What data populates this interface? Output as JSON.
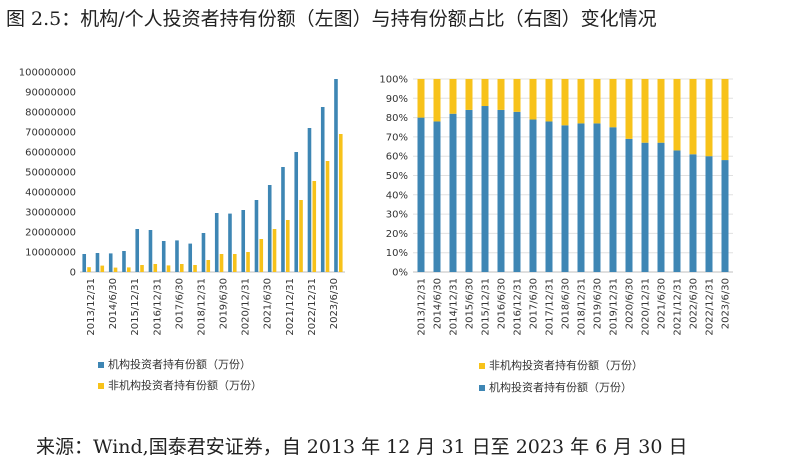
{
  "figure": {
    "title": "图 2.5：机构/个人投资者持有份额（左图）与持有份额占比（右图）变化情况",
    "source": "来源：Wind,国泰君安证券，自 2013 年 12 月 31 日至 2023 年 6 月 30 日"
  },
  "colors": {
    "institutional": "#3E86B4",
    "non_institutional": "#F7C21A"
  },
  "chart_data": [
    {
      "type": "bar",
      "categories": [
        "2013/12/31",
        "2014/6/30",
        "2014/12/31",
        "2015/6/30",
        "2015/12/31",
        "2016/6/30",
        "2016/12/31",
        "2017/6/30",
        "2017/12/31",
        "2018/6/30",
        "2018/12/31",
        "2019/6/30",
        "2019/12/31",
        "2020/6/30",
        "2020/12/31",
        "2021/6/30",
        "2021/12/31",
        "2022/6/30",
        "2022/12/31",
        "2023/6/30"
      ],
      "x_tick_labels": [
        "2013/12/31",
        "2014/6/30",
        "2015/12/31",
        "2016/12/31",
        "2017/6/30",
        "2018/12/31",
        "2019/6/30",
        "2020/12/31",
        "2021/6/30",
        "2021/12/31",
        "2022/12/31",
        "2023/6/30"
      ],
      "series": [
        {
          "name": "机构投资者持有份额（万份）",
          "values": [
            9000000,
            9500000,
            9300000,
            10500000,
            21500000,
            21000000,
            15500000,
            15800000,
            14200000,
            19500000,
            29500000,
            29200000,
            31000000,
            36000000,
            43500000,
            52500000,
            60000000,
            72000000,
            82500000,
            96500000
          ]
        },
        {
          "name": "非机构投资者持有份额（万份）",
          "values": [
            2400000,
            3200000,
            2200000,
            2300000,
            3500000,
            4000000,
            3300000,
            4000000,
            3500000,
            6000000,
            9000000,
            9000000,
            10000000,
            16500000,
            21500000,
            26000000,
            36000000,
            45500000,
            55500000,
            69000000
          ]
        }
      ],
      "y_ticks": [
        "0",
        "10000000",
        "20000000",
        "30000000",
        "40000000",
        "50000000",
        "60000000",
        "70000000",
        "80000000",
        "90000000",
        "100000000"
      ],
      "ylim": [
        0,
        100000000
      ]
    },
    {
      "type": "bar",
      "stacked": true,
      "categories": [
        "2013/12/31",
        "2014/6/30",
        "2014/12/31",
        "2015/6/30",
        "2015/12/31",
        "2016/6/30",
        "2016/12/31",
        "2017/6/30",
        "2017/12/31",
        "2018/6/30",
        "2018/12/31",
        "2019/6/30",
        "2019/12/31",
        "2020/6/30",
        "2020/12/31",
        "2021/6/30",
        "2021/12/31",
        "2022/6/30",
        "2022/12/31",
        "2023/6/30"
      ],
      "x_tick_labels": [
        "2013/12/31",
        "2014/6/30",
        "2014/12/31",
        "2015/6/30",
        "2015/12/31",
        "2016/6/30",
        "2016/12/31",
        "2017/6/30",
        "2017/12/31",
        "2018/6/30",
        "2018/12/31",
        "2019/6/30",
        "2019/12/31",
        "2020/6/30",
        "2020/12/31",
        "2021/6/30",
        "2021/12/31",
        "2022/6/30",
        "2022/12/31",
        "2023/6/30"
      ],
      "series": [
        {
          "name": "机构投资者持有份额（万份）",
          "values": [
            80,
            78,
            82,
            84,
            86,
            84,
            83,
            79,
            78,
            76,
            77,
            77,
            75,
            69,
            67,
            67,
            63,
            61,
            60,
            58
          ]
        },
        {
          "name": "非机构投资者持有份额（万份）",
          "values": [
            20,
            22,
            18,
            16,
            14,
            16,
            17,
            21,
            22,
            24,
            23,
            23,
            25,
            31,
            33,
            33,
            37,
            39,
            40,
            42
          ]
        }
      ],
      "y_ticks": [
        "0%",
        "10%",
        "20%",
        "30%",
        "40%",
        "50%",
        "60%",
        "70%",
        "80%",
        "90%",
        "100%"
      ],
      "ylim": [
        0,
        100
      ],
      "legend_order": [
        1,
        0
      ]
    }
  ]
}
